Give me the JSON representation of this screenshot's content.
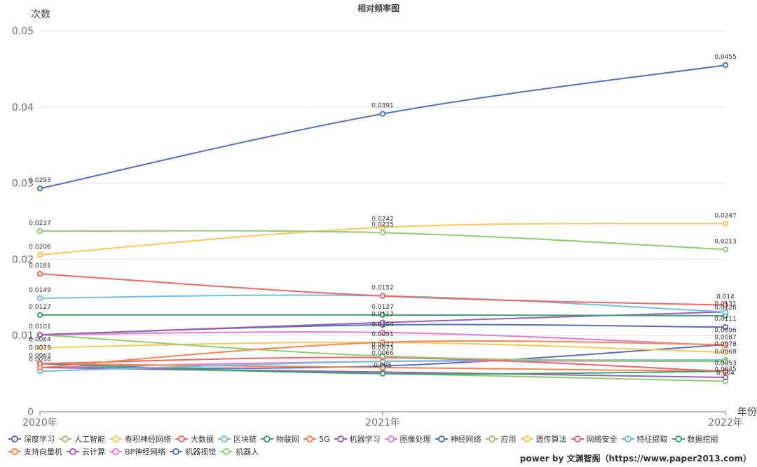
{
  "chart_data": {
    "type": "line",
    "title": "相对频率图",
    "xlabel": "年份",
    "ylabel": "次数",
    "categories": [
      "2020年",
      "2021年",
      "2022年"
    ],
    "ylim": [
      0,
      0.05
    ],
    "yticks": [
      "0",
      "0.01",
      "0.02",
      "0.03",
      "0.04",
      "0.05"
    ],
    "grid": true,
    "legend_position": "bottom",
    "series": [
      {
        "name": "深度学习",
        "color": "#5470c6",
        "values": [
          0.0293,
          0.0391,
          0.0455
        ]
      },
      {
        "name": "人工智能",
        "color": "#91cc75",
        "values": [
          0.0237,
          0.0235,
          0.0213
        ]
      },
      {
        "name": "卷积神经网络",
        "color": "#fac858",
        "values": [
          0.0206,
          0.0242,
          0.0247
        ]
      },
      {
        "name": "大数据",
        "color": "#ee6666",
        "values": [
          0.0181,
          0.0152,
          0.014
        ]
      },
      {
        "name": "区块链",
        "color": "#73c0de",
        "values": [
          0.0149,
          0.0152,
          0.0131
        ]
      },
      {
        "name": "物联网",
        "color": "#3ba272",
        "values": [
          0.0127,
          0.0127,
          0.0126
        ]
      },
      {
        "name": "5G",
        "color": "#fc8452",
        "values": [
          0.0058,
          0.0091,
          0.0088
        ]
      },
      {
        "name": "机器学习",
        "color": "#9a60b4",
        "values": [
          0.0101,
          0.0117,
          0.0131
        ]
      },
      {
        "name": "图像处理",
        "color": "#ea7ccc",
        "values": [
          0.0101,
          0.0104,
          0.0087
        ]
      },
      {
        "name": "神经网络",
        "color": "#5470c6",
        "values": [
          0.0101,
          0.0114,
          0.0111
        ]
      },
      {
        "name": "应用",
        "color": "#91cc75",
        "values": [
          0.0101,
          0.0073,
          0.0066
        ]
      },
      {
        "name": "遗传算法",
        "color": "#fac858",
        "values": [
          0.0084,
          0.0091,
          0.0078
        ]
      },
      {
        "name": "网络安全",
        "color": "#ee6666",
        "values": [
          0.0063,
          0.0071,
          0.0053
        ]
      },
      {
        "name": "特征提取",
        "color": "#73c0de",
        "values": [
          0.0053,
          0.0066,
          0.0068
        ]
      },
      {
        "name": "数据挖掘",
        "color": "#3ba272",
        "values": [
          0.0063,
          0.005,
          0.0053
        ]
      },
      {
        "name": "支持向量机",
        "color": "#fc8452",
        "values": [
          0.0063,
          0.0058,
          0.0053
        ]
      },
      {
        "name": "云计算",
        "color": "#9a60b4",
        "values": [
          0.0058,
          0.0052,
          0.0045
        ]
      },
      {
        "name": "BP神经网络",
        "color": "#ea7ccc",
        "values": [
          0.0058,
          0.0066,
          0.0066
        ]
      },
      {
        "name": "机器视觉",
        "color": "#5470c6",
        "values": [
          0.0058,
          0.006,
          0.0088
        ]
      },
      {
        "name": "机器人",
        "color": "#91cc75",
        "values": [
          0.0058,
          0.005,
          0.004
        ]
      }
    ],
    "data_labels": [
      {
        "x": 0,
        "y": 0.0293,
        "text": "0.0293"
      },
      {
        "x": 1,
        "y": 0.0391,
        "text": "0.0391"
      },
      {
        "x": 2,
        "y": 0.0455,
        "text": "0.0455"
      },
      {
        "x": 0,
        "y": 0.0237,
        "text": "0.0237"
      },
      {
        "x": 1,
        "y": 0.0242,
        "text": "0.0242"
      },
      {
        "x": 1,
        "y": 0.0235,
        "text": "0.0235"
      },
      {
        "x": 2,
        "y": 0.0247,
        "text": "0.0247"
      },
      {
        "x": 2,
        "y": 0.0213,
        "text": "0.0213"
      },
      {
        "x": 0,
        "y": 0.0206,
        "text": "0.0206"
      },
      {
        "x": 0,
        "y": 0.0181,
        "text": "0.0181"
      },
      {
        "x": 0,
        "y": 0.0149,
        "text": "0.0149"
      },
      {
        "x": 1,
        "y": 0.0152,
        "text": "0.0152"
      },
      {
        "x": 2,
        "y": 0.014,
        "text": "0.014"
      },
      {
        "x": 2,
        "y": 0.0131,
        "text": "0.0131"
      },
      {
        "x": 2,
        "y": 0.0126,
        "text": "0.0126"
      },
      {
        "x": 0,
        "y": 0.0127,
        "text": "0.0127"
      },
      {
        "x": 1,
        "y": 0.0127,
        "text": "0.0127"
      },
      {
        "x": 1,
        "y": 0.0117,
        "text": "0.0117"
      },
      {
        "x": 1,
        "y": 0.0104,
        "text": "0.0104"
      },
      {
        "x": 2,
        "y": 0.0111,
        "text": "0.0111"
      },
      {
        "x": 0,
        "y": 0.0101,
        "text": "0.0101"
      },
      {
        "x": 2,
        "y": 0.0096,
        "text": "0.0096"
      },
      {
        "x": 1,
        "y": 0.0091,
        "text": "0.0091"
      },
      {
        "x": 2,
        "y": 0.0087,
        "text": "0.0087"
      },
      {
        "x": 0,
        "y": 0.0084,
        "text": "0.0084"
      },
      {
        "x": 2,
        "y": 0.0078,
        "text": "0.0078"
      },
      {
        "x": 1,
        "y": 0.0077,
        "text": "0.0077"
      },
      {
        "x": 1,
        "y": 0.0073,
        "text": "0.0073"
      },
      {
        "x": 0,
        "y": 0.0073,
        "text": "0.0073"
      },
      {
        "x": 2,
        "y": 0.0068,
        "text": "0.0068"
      },
      {
        "x": 1,
        "y": 0.0066,
        "text": "0.0066"
      },
      {
        "x": 0,
        "y": 0.0063,
        "text": "0.0063"
      },
      {
        "x": 0,
        "y": 0.0058,
        "text": "0.0058"
      },
      {
        "x": 2,
        "y": 0.0053,
        "text": "0.0053"
      },
      {
        "x": 1,
        "y": 0.005,
        "text": "0.005"
      },
      {
        "x": 2,
        "y": 0.0045,
        "text": "0.0045"
      },
      {
        "x": 2,
        "y": 0.004,
        "text": "0.004"
      }
    ]
  },
  "credit": "power by 文渊智阁（https://www.paper2013.com）"
}
